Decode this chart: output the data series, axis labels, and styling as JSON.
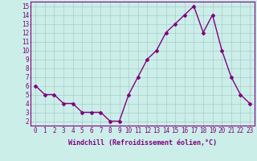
{
  "x": [
    0,
    1,
    2,
    3,
    4,
    5,
    6,
    7,
    8,
    9,
    10,
    11,
    12,
    13,
    14,
    15,
    16,
    17,
    18,
    19,
    20,
    21,
    22,
    23
  ],
  "y": [
    6,
    5,
    5,
    4,
    4,
    3,
    3,
    3,
    2,
    2,
    5,
    7,
    9,
    10,
    12,
    13,
    14,
    15,
    12,
    14,
    10,
    7,
    5,
    4
  ],
  "line_color": "#800080",
  "marker": "D",
  "marker_size": 2.0,
  "background_color": "#cceee8",
  "grid_color": "#aacccc",
  "axes_color": "#800080",
  "xlabel": "Windchill (Refroidissement éolien,°C)",
  "xlabel_fontsize": 6,
  "ylabel_ticks": [
    2,
    3,
    4,
    5,
    6,
    7,
    8,
    9,
    10,
    11,
    12,
    13,
    14,
    15
  ],
  "xlim": [
    -0.5,
    23.5
  ],
  "ylim": [
    1.5,
    15.5
  ],
  "tick_fontsize": 5.5,
  "linewidth": 1.0
}
